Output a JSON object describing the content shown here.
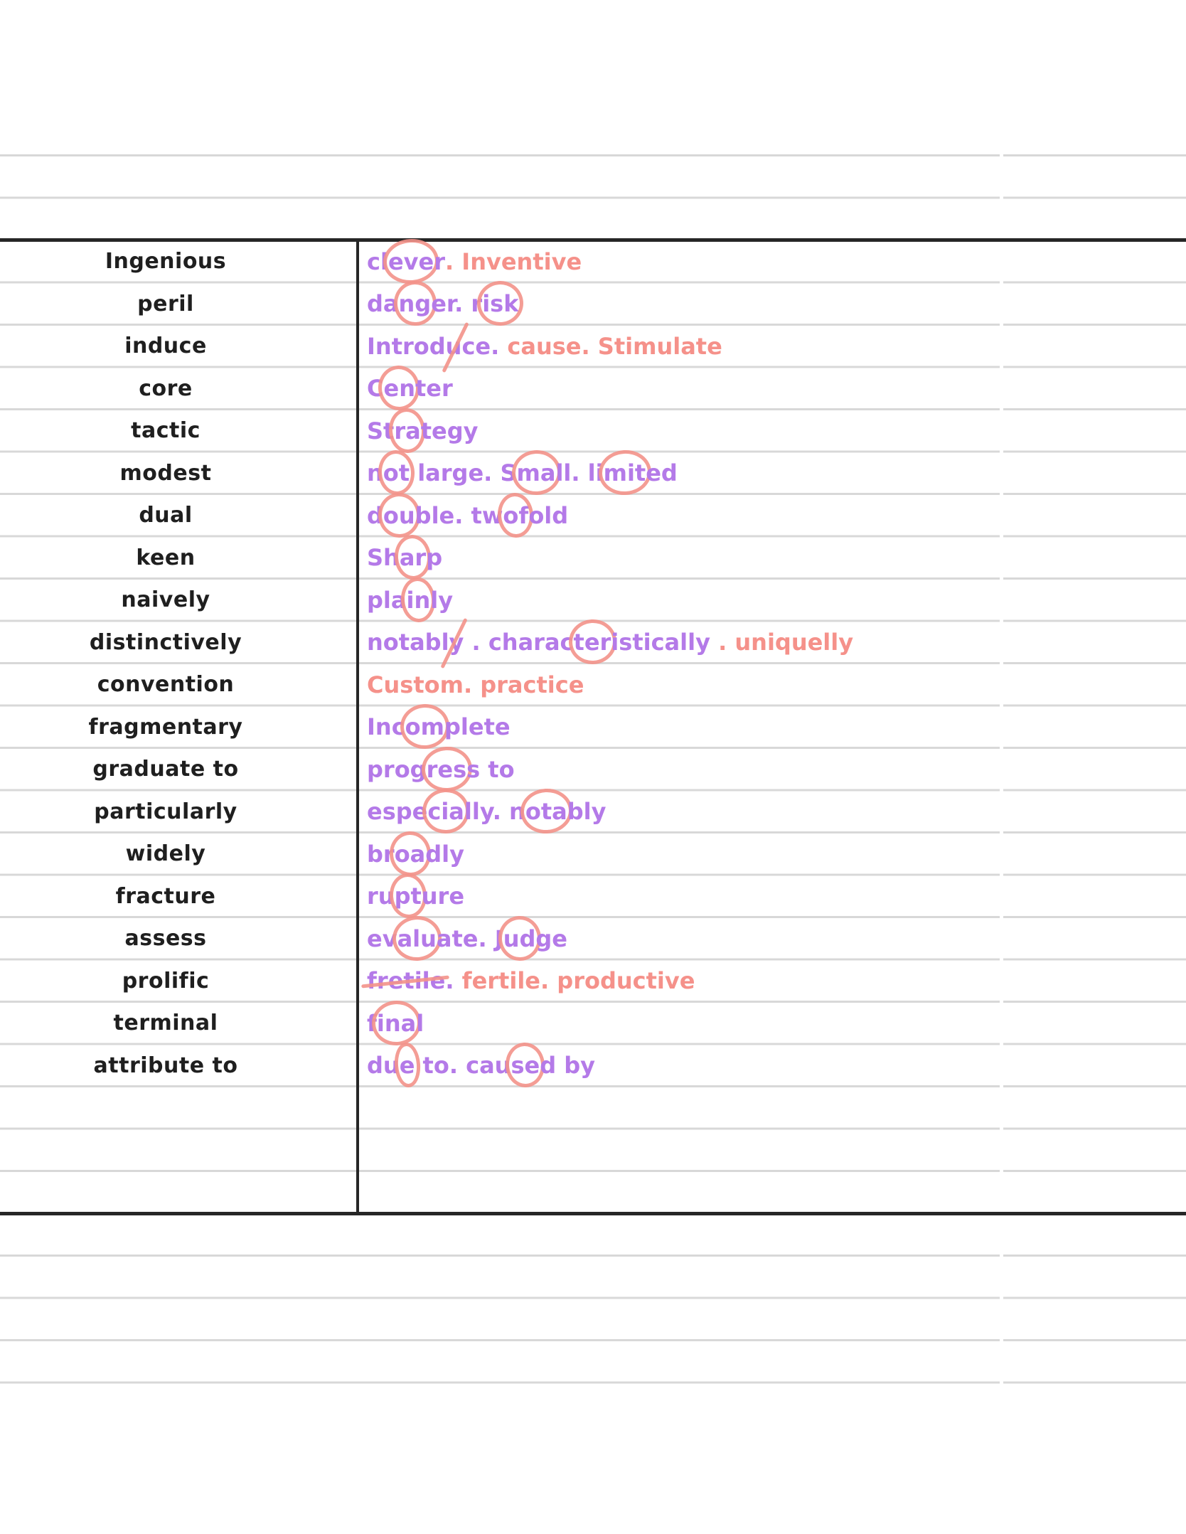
{
  "page": {
    "type": "handwritten-vocabulary-notes"
  },
  "colors": {
    "paper": "#ffffff",
    "word_ink": "#1f1f1f",
    "definition_purple": "#b47ae8",
    "definition_pink": "#f5918a",
    "annotation_coral": "rgba(243,146,137,0.9)",
    "rule_line": "#d8d8d8",
    "table_line": "#262626"
  },
  "vocab_rows": [
    {
      "word": "Ingenious",
      "definition": [
        {
          "t": "cl",
          "c": "purple"
        },
        {
          "t": "eve",
          "c": "purple",
          "m": "circle"
        },
        {
          "t": "r",
          "c": "purple"
        },
        {
          "t": ". Inventive",
          "c": "pink"
        }
      ]
    },
    {
      "word": "peril",
      "definition": [
        {
          "t": "da",
          "c": "purple"
        },
        {
          "t": "ng",
          "c": "purple",
          "m": "circle"
        },
        {
          "t": "er. r",
          "c": "purple"
        },
        {
          "t": "isk",
          "c": "purple",
          "m": "circle"
        }
      ]
    },
    {
      "word": "induce",
      "definition": [
        {
          "t": "Introd",
          "c": "purple"
        },
        {
          "t": "u",
          "c": "purple",
          "m": "slash"
        },
        {
          "t": "ce. ",
          "c": "purple"
        },
        {
          "t": "cause. Stimulate",
          "c": "pink"
        }
      ]
    },
    {
      "word": "core",
      "definition": [
        {
          "t": "C",
          "c": "purple"
        },
        {
          "t": "en",
          "c": "purple",
          "m": "circle"
        },
        {
          "t": "ter",
          "c": "purple"
        }
      ]
    },
    {
      "word": "tactic",
      "definition": [
        {
          "t": "St",
          "c": "purple"
        },
        {
          "t": "ra",
          "c": "purple",
          "m": "circle"
        },
        {
          "t": "tegy",
          "c": "purple"
        }
      ]
    },
    {
      "word": "modest",
      "definition": [
        {
          "t": "n",
          "c": "purple"
        },
        {
          "t": "ot",
          "c": "purple",
          "m": "circle"
        },
        {
          "t": " large. S",
          "c": "purple"
        },
        {
          "t": "ma",
          "c": "purple",
          "m": "circle"
        },
        {
          "t": "ll. li",
          "c": "purple"
        },
        {
          "t": "mit",
          "c": "purple",
          "m": "circle"
        },
        {
          "t": "ed",
          "c": "purple"
        }
      ]
    },
    {
      "word": "dual",
      "definition": [
        {
          "t": "d",
          "c": "purple"
        },
        {
          "t": "ou",
          "c": "purple",
          "m": "circle"
        },
        {
          "t": "ble. tw",
          "c": "purple"
        },
        {
          "t": "of",
          "c": "purple",
          "m": "circle"
        },
        {
          "t": "old",
          "c": "purple"
        }
      ]
    },
    {
      "word": "keen",
      "definition": [
        {
          "t": "Sh",
          "c": "purple"
        },
        {
          "t": "ar",
          "c": "purple",
          "m": "circle"
        },
        {
          "t": "p",
          "c": "purple"
        }
      ]
    },
    {
      "word": "naively",
      "definition": [
        {
          "t": "pla",
          "c": "purple"
        },
        {
          "t": "in",
          "c": "purple",
          "m": "circle"
        },
        {
          "t": "ly",
          "c": "purple"
        }
      ]
    },
    {
      "word": "distinctively",
      "definition": [
        {
          "t": "notab",
          "c": "purple"
        },
        {
          "t": "ly",
          "c": "purple",
          "m": "slash"
        },
        {
          "t": " . charac",
          "c": "purple"
        },
        {
          "t": "ter",
          "c": "purple",
          "m": "circle"
        },
        {
          "t": "istically",
          "c": "purple"
        },
        {
          "t": " . uniquelly",
          "c": "pink"
        }
      ]
    },
    {
      "word": "convention",
      "definition": [
        {
          "t": "Custom. practice",
          "c": "pink"
        }
      ]
    },
    {
      "word": "fragmentary",
      "definition": [
        {
          "t": "Inc",
          "c": "purple"
        },
        {
          "t": "om",
          "c": "purple",
          "m": "circle"
        },
        {
          "t": "plete",
          "c": "purple"
        }
      ]
    },
    {
      "word": "graduate to",
      "definition": [
        {
          "t": "prog",
          "c": "purple"
        },
        {
          "t": "res",
          "c": "purple",
          "m": "circle"
        },
        {
          "t": "s to",
          "c": "purple"
        }
      ]
    },
    {
      "word": "particularly",
      "definition": [
        {
          "t": "espe",
          "c": "purple"
        },
        {
          "t": "cia",
          "c": "purple",
          "m": "circle"
        },
        {
          "t": "lly. n",
          "c": "purple"
        },
        {
          "t": "ota",
          "c": "purple",
          "m": "circle"
        },
        {
          "t": "bly",
          "c": "purple"
        }
      ]
    },
    {
      "word": "widely",
      "definition": [
        {
          "t": "br",
          "c": "purple"
        },
        {
          "t": "oa",
          "c": "purple",
          "m": "circle"
        },
        {
          "t": "dly",
          "c": "purple"
        }
      ]
    },
    {
      "word": "fracture",
      "definition": [
        {
          "t": "ru",
          "c": "purple"
        },
        {
          "t": "pt",
          "c": "purple",
          "m": "circle"
        },
        {
          "t": "ure",
          "c": "purple"
        }
      ]
    },
    {
      "word": "assess",
      "definition": [
        {
          "t": "ev",
          "c": "purple"
        },
        {
          "t": "alu",
          "c": "purple",
          "m": "circle"
        },
        {
          "t": "ate. J",
          "c": "purple"
        },
        {
          "t": "ud",
          "c": "purple",
          "m": "circle"
        },
        {
          "t": "ge",
          "c": "purple"
        }
      ]
    },
    {
      "word": "prolific",
      "definition": [
        {
          "t": "fretile",
          "c": "purple",
          "m": "strike"
        },
        {
          "t": ". ",
          "c": "purple"
        },
        {
          "t": "fertile. productive",
          "c": "pink"
        }
      ]
    },
    {
      "word": "terminal",
      "definition": [
        {
          "t": "f",
          "c": "purple"
        },
        {
          "t": "ina",
          "c": "purple",
          "m": "circle"
        },
        {
          "t": "l",
          "c": "purple"
        }
      ]
    },
    {
      "word": "attribute to",
      "definition": [
        {
          "t": "du",
          "c": "purple"
        },
        {
          "t": "e",
          "c": "purple",
          "m": "circle"
        },
        {
          "t": " to. cau",
          "c": "purple"
        },
        {
          "t": "se",
          "c": "purple",
          "m": "circle"
        },
        {
          "t": "d by",
          "c": "purple"
        }
      ]
    }
  ]
}
